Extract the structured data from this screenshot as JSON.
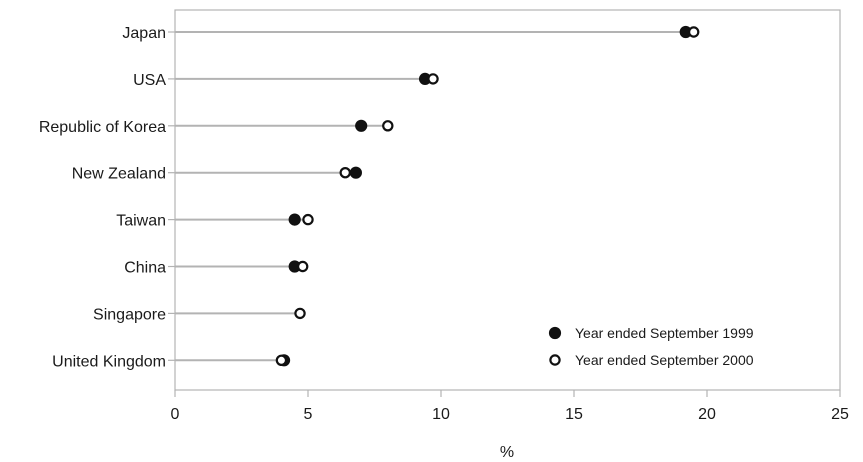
{
  "chart_data": {
    "type": "scatter",
    "orientation": "horizontal",
    "title": "",
    "xlabel": "%",
    "ylabel": "",
    "xlim": [
      0,
      25
    ],
    "x_ticks": [
      "0",
      "5",
      "10",
      "15",
      "20",
      "25"
    ],
    "grid": false,
    "legend_position": "bottom-right",
    "categories": [
      "Japan",
      "USA",
      "Republic of Korea",
      "New Zealand",
      "Taiwan",
      "China",
      "Singapore",
      "United Kingdom"
    ],
    "series": [
      {
        "name": "Year ended September 1999",
        "marker": "filled-circle",
        "color": "#111111",
        "values": [
          19.2,
          9.4,
          7.0,
          6.8,
          4.5,
          4.5,
          null,
          4.1
        ]
      },
      {
        "name": "Year ended September 2000",
        "marker": "open-circle",
        "color": "#111111",
        "values": [
          19.5,
          9.7,
          8.0,
          6.4,
          5.0,
          4.8,
          4.7,
          4.0
        ]
      }
    ],
    "colors": {
      "axis": "#b3b3b3",
      "stem": "#b3b3b3",
      "marker": "#111111"
    }
  }
}
